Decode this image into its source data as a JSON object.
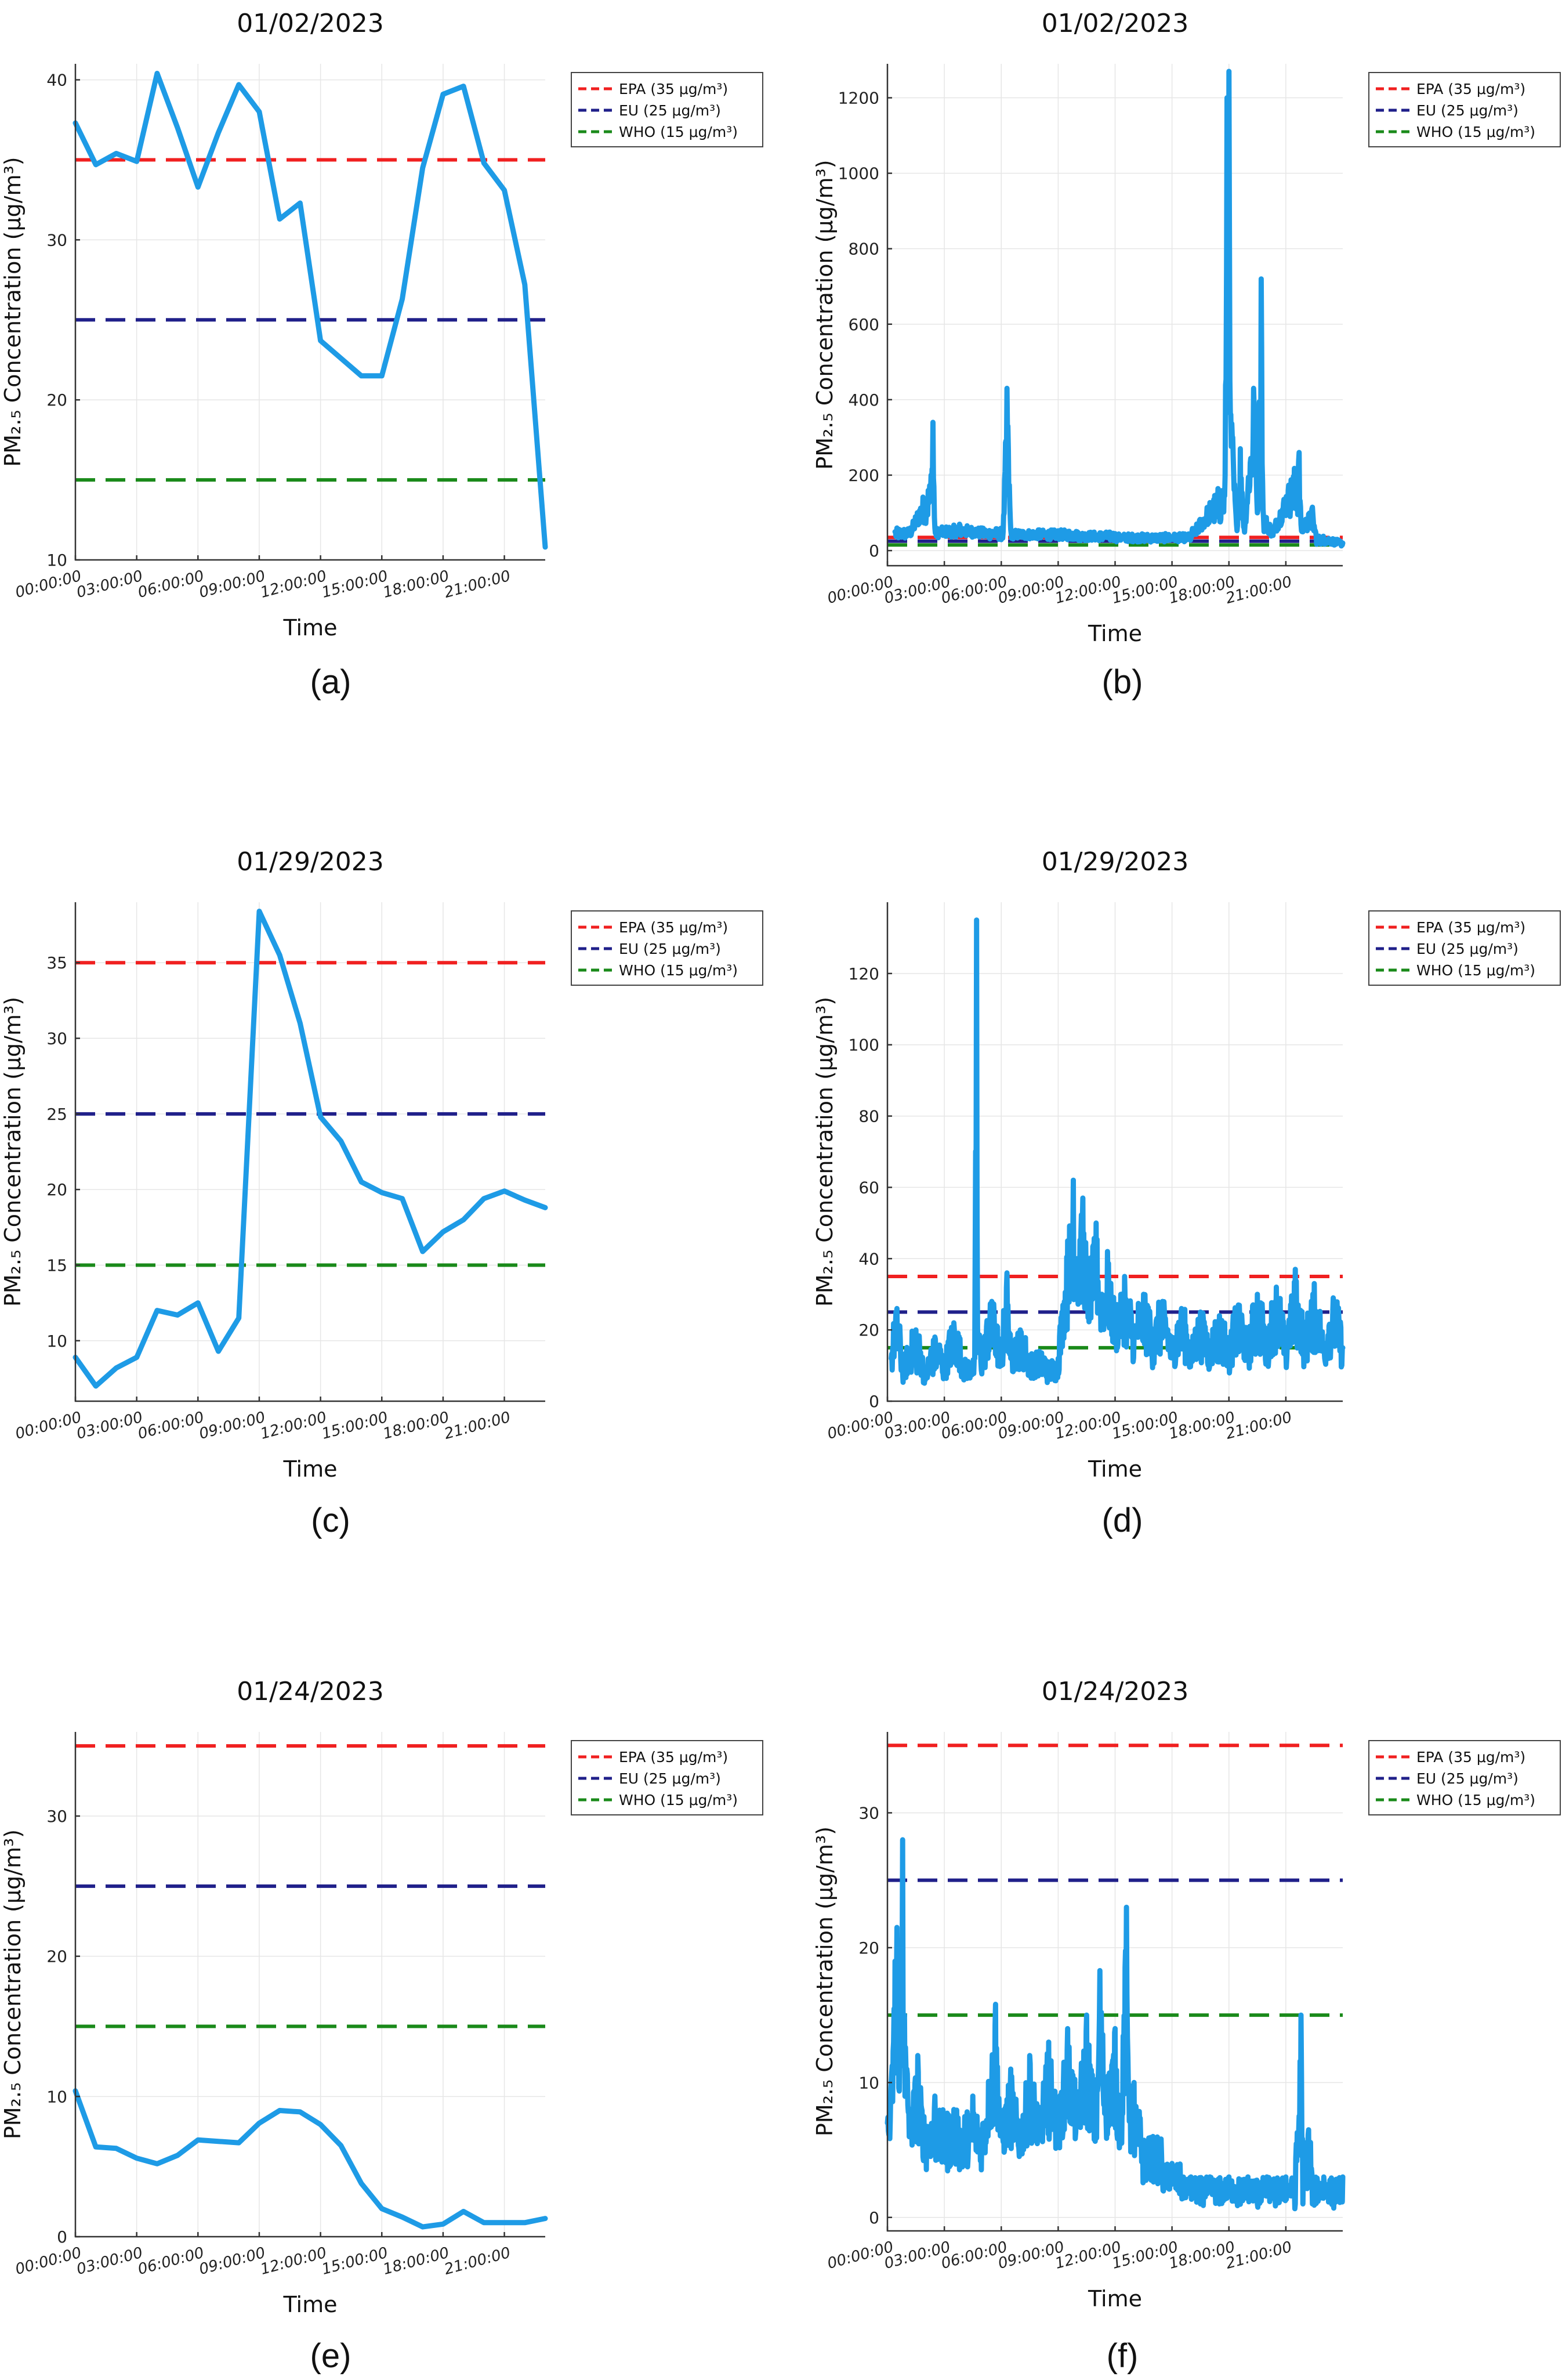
{
  "figure": {
    "series_color": "#1e9be6",
    "ref_colors": {
      "EPA": "#f02020",
      "EU": "#20208a",
      "WHO": "#1a8a1a"
    }
  },
  "chart_data": [
    {
      "panel": "(a)",
      "type": "line",
      "title": "01/02/2023",
      "xlabel": "Time",
      "ylabel": "PM₂.₅ Concentration (μg/m³)",
      "xlim": [
        0,
        23
      ],
      "ylim": [
        10,
        41
      ],
      "yticks": [
        10,
        20,
        30,
        40
      ],
      "xticks": [
        0,
        3,
        6,
        9,
        12,
        15,
        18,
        21
      ],
      "xtick_labels": [
        "00:00:00",
        "03:00:00",
        "06:00:00",
        "09:00:00",
        "12:00:00",
        "15:00:00",
        "18:00:00",
        "21:00:00"
      ],
      "legend": [
        "EPA (35 μg/m³)",
        "EU (25 μg/m³)",
        "WHO (15 μg/m³)"
      ],
      "legend_position": "top-right-outside",
      "reference_lines": [
        35,
        25,
        15
      ],
      "x": [
        0,
        1,
        2,
        3,
        4,
        5,
        6,
        7,
        8,
        9,
        10,
        11,
        12,
        13,
        14,
        15,
        16,
        17,
        18,
        19,
        20,
        21,
        22,
        23
      ],
      "values": [
        37.3,
        34.7,
        35.4,
        34.9,
        40.4,
        37.0,
        33.3,
        36.7,
        39.7,
        38.0,
        31.3,
        32.3,
        23.7,
        22.6,
        21.5,
        21.5,
        26.3,
        34.5,
        39.1,
        39.6,
        34.8,
        33.1,
        27.2,
        10.8
      ]
    },
    {
      "panel": "(b)",
      "type": "line",
      "title": "01/02/2023",
      "xlabel": "Time",
      "ylabel": "PM₂.₅ Concentration (μg/m³)",
      "xlim": [
        0,
        24
      ],
      "ylim": [
        -40,
        1290
      ],
      "yticks": [
        0,
        200,
        400,
        600,
        800,
        1000,
        1200
      ],
      "xticks": [
        0,
        3,
        6,
        9,
        12,
        15,
        18,
        21
      ],
      "xtick_labels": [
        "00:00:00",
        "03:00:00",
        "06:00:00",
        "09:00:00",
        "12:00:00",
        "15:00:00",
        "18:00:00",
        "21:00:00"
      ],
      "legend": [
        "EPA (35 μg/m³)",
        "EU (25 μg/m³)",
        "WHO (15 μg/m³)"
      ],
      "legend_position": "top-right-outside",
      "reference_lines": [
        35,
        25,
        15
      ],
      "spikes": [
        [
          0.4,
          50
        ],
        [
          1.2,
          60
        ],
        [
          2.3,
          200
        ],
        [
          2.4,
          340
        ],
        [
          2.5,
          60
        ],
        [
          3.8,
          70
        ],
        [
          5.0,
          60
        ],
        [
          6.1,
          50
        ],
        [
          6.3,
          430
        ],
        [
          6.35,
          330
        ],
        [
          6.5,
          55
        ],
        [
          8.0,
          55
        ],
        [
          10.0,
          50
        ],
        [
          12.0,
          45
        ],
        [
          14.0,
          40
        ],
        [
          16.0,
          45
        ],
        [
          17.8,
          200
        ],
        [
          17.9,
          1200
        ],
        [
          18.0,
          1270
        ],
        [
          18.05,
          450
        ],
        [
          18.2,
          300
        ],
        [
          18.4,
          70
        ],
        [
          18.6,
          270
        ],
        [
          18.8,
          60
        ],
        [
          19.3,
          430
        ],
        [
          19.4,
          350
        ],
        [
          19.5,
          100
        ],
        [
          19.7,
          720
        ],
        [
          19.8,
          110
        ],
        [
          20.3,
          60
        ],
        [
          21.7,
          260
        ],
        [
          21.8,
          70
        ],
        [
          22.4,
          115
        ],
        [
          22.6,
          40
        ],
        [
          24.0,
          20
        ]
      ],
      "noise_range": [
        0,
        60
      ]
    },
    {
      "panel": "(c)",
      "type": "line",
      "title": "01/29/2023",
      "xlabel": "Time",
      "ylabel": "PM₂.₅ Concentration (μg/m³)",
      "xlim": [
        0,
        23
      ],
      "ylim": [
        6,
        39
      ],
      "yticks": [
        10,
        15,
        20,
        25,
        30,
        35
      ],
      "xticks": [
        0,
        3,
        6,
        9,
        12,
        15,
        18,
        21
      ],
      "xtick_labels": [
        "00:00:00",
        "03:00:00",
        "06:00:00",
        "09:00:00",
        "12:00:00",
        "15:00:00",
        "18:00:00",
        "21:00:00"
      ],
      "legend": [
        "EPA (35 μg/m³)",
        "EU (25 μg/m³)",
        "WHO (15 μg/m³)"
      ],
      "legend_position": "top-right-outside",
      "reference_lines": [
        35,
        25,
        15
      ],
      "x": [
        0,
        1,
        2,
        3,
        4,
        5,
        6,
        7,
        8,
        9,
        10,
        11,
        12,
        13,
        14,
        15,
        16,
        17,
        18,
        19,
        20,
        21,
        22,
        23
      ],
      "values": [
        8.9,
        7.0,
        8.2,
        8.9,
        12.0,
        11.7,
        12.5,
        9.3,
        11.5,
        38.4,
        35.5,
        31.0,
        24.8,
        23.2,
        20.5,
        19.8,
        19.4,
        15.9,
        17.2,
        18.0,
        19.4,
        19.9,
        19.3,
        18.8
      ]
    },
    {
      "panel": "(d)",
      "type": "line",
      "title": "01/29/2023",
      "xlabel": "Time",
      "ylabel": "PM₂.₅ Concentration (μg/m³)",
      "xlim": [
        0,
        24
      ],
      "ylim": [
        0,
        140
      ],
      "yticks": [
        0,
        20,
        40,
        60,
        80,
        100,
        120
      ],
      "xticks": [
        0,
        3,
        6,
        9,
        12,
        15,
        18,
        21
      ],
      "xtick_labels": [
        "00:00:00",
        "03:00:00",
        "06:00:00",
        "09:00:00",
        "12:00:00",
        "15:00:00",
        "18:00:00",
        "21:00:00"
      ],
      "legend": [
        "EPA (35 μg/m³)",
        "EU (25 μg/m³)",
        "WHO (15 μg/m³)"
      ],
      "legend_position": "top-right-outside",
      "reference_lines": [
        35,
        25,
        15
      ],
      "spikes": [
        [
          0.2,
          12
        ],
        [
          0.5,
          26
        ],
        [
          0.8,
          8
        ],
        [
          1.5,
          20
        ],
        [
          2.0,
          6
        ],
        [
          2.5,
          18
        ],
        [
          3.0,
          9
        ],
        [
          3.5,
          22
        ],
        [
          4.0,
          10
        ],
        [
          4.6,
          12
        ],
        [
          4.7,
          135
        ],
        [
          4.75,
          20
        ],
        [
          5.0,
          11
        ],
        [
          5.5,
          28
        ],
        [
          6.0,
          10
        ],
        [
          6.3,
          36
        ],
        [
          6.5,
          12
        ],
        [
          7.0,
          20
        ],
        [
          7.5,
          10
        ],
        [
          8.0,
          14
        ],
        [
          8.5,
          8
        ],
        [
          9.0,
          12
        ],
        [
          9.2,
          25
        ],
        [
          9.5,
          45
        ],
        [
          9.8,
          62
        ],
        [
          10.0,
          40
        ],
        [
          10.3,
          57
        ],
        [
          10.6,
          35
        ],
        [
          11.0,
          50
        ],
        [
          11.3,
          30
        ],
        [
          11.6,
          42
        ],
        [
          12.0,
          22
        ],
        [
          12.5,
          35
        ],
        [
          13.0,
          18
        ],
        [
          13.5,
          30
        ],
        [
          14.0,
          16
        ],
        [
          14.5,
          28
        ],
        [
          15.0,
          14
        ],
        [
          15.5,
          26
        ],
        [
          16.0,
          12
        ],
        [
          16.5,
          25
        ],
        [
          17.0,
          14
        ],
        [
          17.5,
          24
        ],
        [
          18.0,
          13
        ],
        [
          18.5,
          27
        ],
        [
          19.0,
          14
        ],
        [
          19.5,
          30
        ],
        [
          20.0,
          15
        ],
        [
          20.5,
          32
        ],
        [
          21.0,
          14
        ],
        [
          21.5,
          37
        ],
        [
          22.0,
          15
        ],
        [
          22.5,
          33
        ],
        [
          23.0,
          14
        ],
        [
          23.5,
          29
        ],
        [
          24.0,
          15
        ]
      ],
      "noise_range": [
        5,
        30
      ]
    },
    {
      "panel": "(e)",
      "type": "line",
      "title": "01/24/2023",
      "xlabel": "Time",
      "ylabel": "PM₂.₅ Concentration (μg/m³)",
      "xlim": [
        0,
        23
      ],
      "ylim": [
        0,
        36
      ],
      "yticks": [
        0,
        10,
        20,
        30
      ],
      "xticks": [
        0,
        3,
        6,
        9,
        12,
        15,
        18,
        21
      ],
      "xtick_labels": [
        "00:00:00",
        "03:00:00",
        "06:00:00",
        "09:00:00",
        "12:00:00",
        "15:00:00",
        "18:00:00",
        "21:00:00"
      ],
      "legend": [
        "EPA (35 μg/m³)",
        "EU (25 μg/m³)",
        "WHO (15 μg/m³)"
      ],
      "legend_position": "top-right-outside",
      "reference_lines": [
        35,
        25,
        15
      ],
      "x": [
        0,
        1,
        2,
        3,
        4,
        5,
        6,
        7,
        8,
        9,
        10,
        11,
        12,
        13,
        14,
        15,
        16,
        17,
        18,
        19,
        20,
        21,
        22,
        23
      ],
      "values": [
        10.4,
        6.4,
        6.3,
        5.6,
        5.2,
        5.8,
        6.9,
        6.8,
        6.7,
        8.1,
        9.0,
        8.9,
        8.0,
        6.5,
        3.8,
        2.0,
        1.4,
        0.7,
        0.9,
        1.8,
        1.0,
        1.0,
        1.0,
        1.3
      ]
    },
    {
      "panel": "(f)",
      "type": "line",
      "title": "01/24/2023",
      "xlabel": "Time",
      "ylabel": "PM₂.₅ Concentration (μg/m³)",
      "xlim": [
        0,
        24
      ],
      "ylim": [
        -1,
        36
      ],
      "yticks": [
        0,
        10,
        20,
        30
      ],
      "xticks": [
        0,
        3,
        6,
        9,
        12,
        15,
        18,
        21
      ],
      "xtick_labels": [
        "00:00:00",
        "03:00:00",
        "06:00:00",
        "09:00:00",
        "12:00:00",
        "15:00:00",
        "18:00:00",
        "21:00:00"
      ],
      "legend": [
        "EPA (35 μg/m³)",
        "EU (25 μg/m³)",
        "WHO (15 μg/m³)"
      ],
      "legend_position": "top-right-outside",
      "reference_lines": [
        35,
        25,
        15
      ],
      "spikes": [
        [
          0.0,
          7
        ],
        [
          0.2,
          10
        ],
        [
          0.4,
          19
        ],
        [
          0.5,
          21.5
        ],
        [
          0.7,
          12
        ],
        [
          0.8,
          28
        ],
        [
          0.9,
          15
        ],
        [
          1.2,
          8
        ],
        [
          1.6,
          12
        ],
        [
          2.0,
          6
        ],
        [
          2.5,
          9
        ],
        [
          3.0,
          5
        ],
        [
          3.5,
          8
        ],
        [
          4.0,
          5
        ],
        [
          4.5,
          9
        ],
        [
          5.0,
          6
        ],
        [
          5.7,
          15.8
        ],
        [
          6.0,
          7
        ],
        [
          6.5,
          11
        ],
        [
          7.0,
          7
        ],
        [
          7.5,
          12
        ],
        [
          8.0,
          8
        ],
        [
          8.5,
          13
        ],
        [
          9.0,
          8
        ],
        [
          9.5,
          14
        ],
        [
          10.0,
          9
        ],
        [
          10.5,
          15
        ],
        [
          11.0,
          8
        ],
        [
          11.2,
          18.3
        ],
        [
          11.5,
          10
        ],
        [
          12.0,
          14
        ],
        [
          12.3,
          7
        ],
        [
          12.6,
          23
        ],
        [
          12.8,
          8
        ],
        [
          13.0,
          10
        ],
        [
          13.5,
          4
        ],
        [
          14.0,
          6
        ],
        [
          14.5,
          3
        ],
        [
          15.0,
          4
        ],
        [
          15.5,
          2
        ],
        [
          16.0,
          3
        ],
        [
          16.5,
          1
        ],
        [
          17.0,
          3
        ],
        [
          17.5,
          1
        ],
        [
          18.0,
          3
        ],
        [
          18.5,
          1
        ],
        [
          19.0,
          3
        ],
        [
          19.5,
          1
        ],
        [
          20.0,
          3
        ],
        [
          20.5,
          1
        ],
        [
          21.0,
          3
        ],
        [
          21.5,
          1
        ],
        [
          21.8,
          15
        ],
        [
          21.9,
          1
        ],
        [
          22.2,
          6.5
        ],
        [
          22.4,
          1
        ],
        [
          23.0,
          3
        ],
        [
          23.5,
          1
        ],
        [
          24.0,
          3
        ]
      ],
      "noise_range": [
        0,
        8
      ]
    }
  ],
  "captions": [
    "(a)",
    "(b)",
    "(c)",
    "(d)",
    "(e)",
    "(f)"
  ]
}
